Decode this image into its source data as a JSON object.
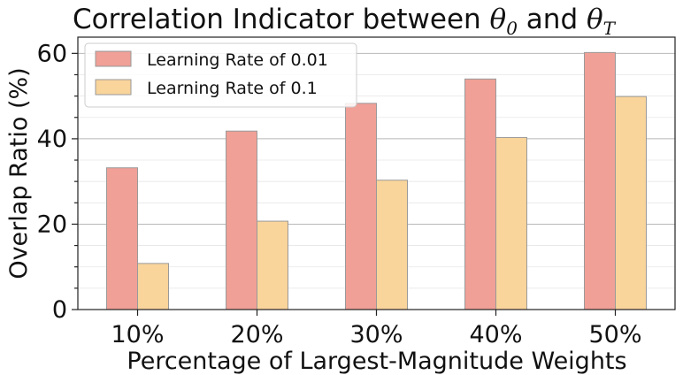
{
  "chart_data": {
    "type": "bar",
    "title": {
      "prefix": "Correlation Indicator between ",
      "symbol_a": "θ",
      "sub_a": "0",
      "middle": " and ",
      "symbol_b": "θ",
      "sub_b": "T"
    },
    "xlabel": "Percentage of Largest-Magnitude Weights",
    "ylabel": "Overlap Ratio (%)",
    "categories": [
      "10%",
      "20%",
      "30%",
      "40%",
      "50%"
    ],
    "series": [
      {
        "name": "Learning Rate of 0.01",
        "color": "#f0a097",
        "values": [
          33.2,
          41.8,
          48.3,
          54.0,
          60.2
        ]
      },
      {
        "name": "Learning Rate of 0.1",
        "color": "#f9d49b",
        "values": [
          10.8,
          20.7,
          30.3,
          40.3,
          49.9
        ]
      }
    ],
    "ylim": [
      0,
      63.8
    ],
    "yticks": [
      0,
      20,
      40,
      60
    ],
    "ytick_labels": [
      "0",
      "20",
      "40",
      "60"
    ],
    "grid": true,
    "legend_position": "top-left"
  }
}
